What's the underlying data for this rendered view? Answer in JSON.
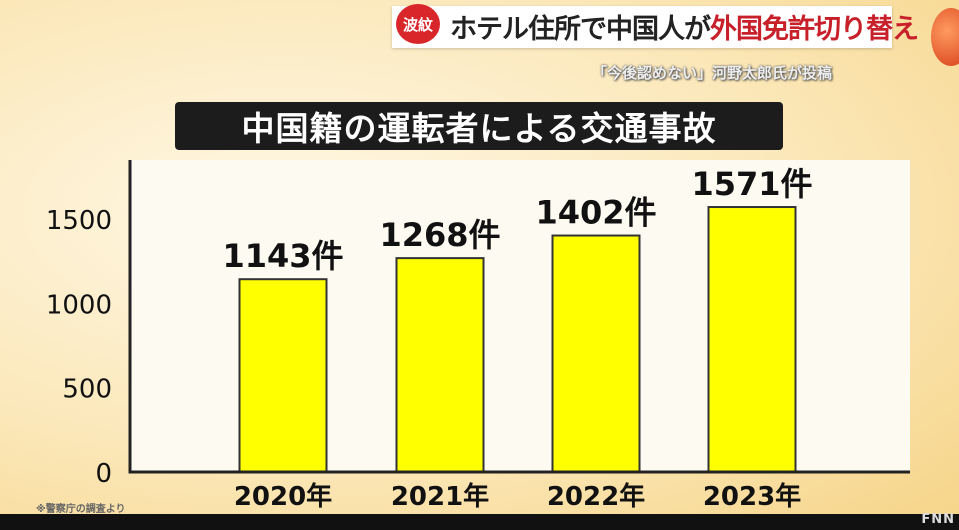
{
  "header": {
    "badge": "波紋",
    "headline_black": "ホテル住所で中国人が",
    "headline_red": "外国免許切り替え",
    "subheadline": "「今後認めない」河野太郎氏が投稿",
    "logo": "FNN"
  },
  "chart_data": {
    "type": "bar",
    "title": "中国籍の運転者による交通事故",
    "categories": [
      "2020年",
      "2021年",
      "2022年",
      "2023年"
    ],
    "values": [
      1143,
      1268,
      1402,
      1571
    ],
    "value_labels": [
      "1143件",
      "1268件",
      "1402件",
      "1571件"
    ],
    "ylim": [
      0,
      1850
    ],
    "yticks": [
      0,
      500,
      1000,
      1500
    ],
    "ytick_labels": [
      "0",
      "500",
      "1000",
      "1500"
    ],
    "xlabel": "",
    "ylabel": "",
    "bar_color": "#ffff00",
    "grid": false,
    "source_note": "※警察庁の調査より"
  }
}
